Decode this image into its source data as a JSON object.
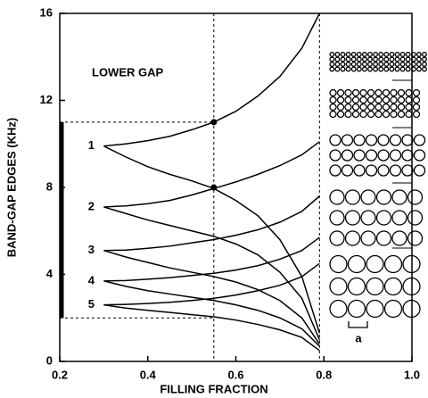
{
  "chart_data": {
    "type": "line",
    "xlabel": "FILLING FRACTION",
    "ylabel": "BAND-GAP EDGES (KHz)",
    "annotation": "LOWER GAP",
    "lattice_label": "a",
    "branch_labels": [
      "1",
      "2",
      "3",
      "4",
      "5"
    ],
    "xlim": [
      0.2,
      1
    ],
    "ylim": [
      0,
      16
    ],
    "xticks": [
      0.2,
      0.4,
      0.6,
      0.8,
      {
        "value": 1,
        "label": "1.0"
      }
    ],
    "yticks": [
      0,
      4,
      8,
      12,
      16
    ],
    "x": [
      0.3,
      0.35,
      0.4,
      0.45,
      0.5,
      0.55,
      0.6,
      0.65,
      0.7,
      0.75,
      0.79
    ],
    "series": [
      {
        "color": "#000000",
        "values": [
          9.9,
          10.0,
          10.15,
          10.35,
          10.65,
          11.0,
          11.5,
          12.2,
          13.1,
          14.4,
          16.0
        ]
      },
      {
        "color": "#000000",
        "values": [
          9.9,
          9.4,
          8.95,
          8.6,
          8.3,
          7.95,
          7.4,
          6.7,
          5.6,
          3.9,
          1.3
        ]
      },
      {
        "color": "#000000",
        "values": [
          7.1,
          7.15,
          7.25,
          7.4,
          7.65,
          7.95,
          8.25,
          8.6,
          9.0,
          9.5,
          10.1
        ]
      },
      {
        "color": "#000000",
        "values": [
          7.1,
          6.8,
          6.5,
          6.25,
          6.0,
          5.75,
          5.4,
          4.9,
          4.1,
          2.9,
          1.0
        ]
      },
      {
        "color": "#000000",
        "values": [
          5.1,
          5.12,
          5.2,
          5.3,
          5.45,
          5.6,
          5.8,
          6.05,
          6.4,
          6.9,
          7.6
        ]
      },
      {
        "color": "#000000",
        "values": [
          5.1,
          4.8,
          4.55,
          4.3,
          4.1,
          3.9,
          3.65,
          3.3,
          2.8,
          2.0,
          0.8
        ]
      },
      {
        "color": "#000000",
        "values": [
          3.7,
          3.72,
          3.78,
          3.85,
          3.95,
          4.05,
          4.2,
          4.4,
          4.7,
          5.1,
          5.7
        ]
      },
      {
        "color": "#000000",
        "values": [
          3.7,
          3.45,
          3.25,
          3.1,
          2.95,
          2.8,
          2.6,
          2.35,
          2.0,
          1.5,
          0.7
        ]
      },
      {
        "color": "#000000",
        "values": [
          2.6,
          2.62,
          2.66,
          2.72,
          2.8,
          2.9,
          3.05,
          3.25,
          3.5,
          3.9,
          4.5
        ]
      },
      {
        "color": "#000000",
        "values": [
          2.6,
          2.45,
          2.35,
          2.25,
          2.15,
          2.05,
          1.9,
          1.7,
          1.45,
          1.1,
          0.5
        ]
      }
    ],
    "gap_band": [
      2,
      11
    ],
    "ref_x": [
      0.55,
      0.79
    ],
    "ref_y": [
      2,
      11
    ],
    "points": {
      "x": [
        0.55,
        0.55
      ],
      "y": [
        11,
        8
      ]
    }
  }
}
